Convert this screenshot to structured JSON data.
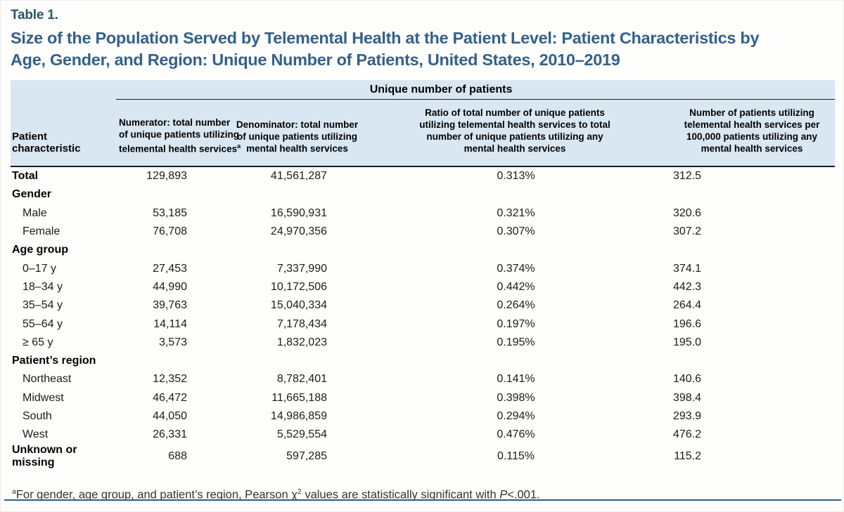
{
  "header": {
    "table_label": "Table 1.",
    "title": "Size of the Population Served by Telemental Health at the Patient Level: Patient Characteristics by\nAge, Gender, and Region: Unique Number of Patients, United States, 2010–2019"
  },
  "table": {
    "spanner": "Unique number of patients",
    "columns": [
      {
        "text": "Patient\ncharacteristic"
      },
      {
        "text": "Numerator: total number\nof unique patients utilizing\ntelemental health services",
        "sup": "a"
      },
      {
        "text": "Denominator: total number\nof unique patients utilizing\nmental health services"
      },
      {
        "text": "Ratio of total number of unique patients\nutilizing telemental health services to total\nnumber of unique patients utilizing any\nmental health services"
      },
      {
        "text": "Number of patients utilizing\ntelemental health services per\n100,000 patients utilizing any\nmental health services"
      }
    ],
    "rows": [
      {
        "label": "Total",
        "style": "bold",
        "values": [
          "129,893",
          "41,561,287",
          "0.313%",
          "312.5"
        ]
      },
      {
        "label": "Gender",
        "style": "section",
        "values": [
          "",
          "",
          "",
          ""
        ]
      },
      {
        "label": "Male",
        "style": "indent",
        "values": [
          "53,185",
          "16,590,931",
          "0.321%",
          "320.6"
        ]
      },
      {
        "label": "Female",
        "style": "indent",
        "values": [
          "76,708",
          "24,970,356",
          "0.307%",
          "307.2"
        ]
      },
      {
        "label": "Age group",
        "style": "section",
        "values": [
          "",
          "",
          "",
          ""
        ]
      },
      {
        "label": "0–17 y",
        "style": "indent",
        "values": [
          "27,453",
          "7,337,990",
          "0.374%",
          "374.1"
        ]
      },
      {
        "label": "18–34 y",
        "style": "indent",
        "values": [
          "44,990",
          "10,172,506",
          "0.442%",
          "442.3"
        ]
      },
      {
        "label": "35–54 y",
        "style": "indent",
        "values": [
          "39,763",
          "15,040,334",
          "0.264%",
          "264.4"
        ]
      },
      {
        "label": "55–64 y",
        "style": "indent",
        "values": [
          "14,114",
          "7,178,434",
          "0.197%",
          "196.6"
        ]
      },
      {
        "label": "≥ 65 y",
        "style": "indent",
        "values": [
          "3,573",
          "1,832,023",
          "0.195%",
          "195.0"
        ]
      },
      {
        "label": "Patient’s region",
        "style": "section",
        "values": [
          "",
          "",
          "",
          ""
        ]
      },
      {
        "label": "Northeast",
        "style": "indent",
        "values": [
          "12,352",
          "8,782,401",
          "0.141%",
          "140.6"
        ]
      },
      {
        "label": "Midwest",
        "style": "indent",
        "values": [
          "46,472",
          "11,665,188",
          "0.398%",
          "398.4"
        ]
      },
      {
        "label": "South",
        "style": "indent",
        "values": [
          "44,050",
          "14,986,859",
          "0.294%",
          "293.9"
        ]
      },
      {
        "label": "West",
        "style": "indent",
        "values": [
          "26,331",
          "5,529,554",
          "0.476%",
          "476.2"
        ]
      },
      {
        "label": "Unknown or missing",
        "style": "bold",
        "values": [
          "688",
          "597,285",
          "0.115%",
          "115.2"
        ]
      }
    ]
  },
  "footnote": {
    "sup": "a",
    "text1": "For gender, age group, and patient’s region, Pearson χ",
    "chi_sup": "2",
    "text2": " values are statistically significant with ",
    "p_label": "P",
    "text3": "<.001."
  },
  "colors": {
    "header_bg": "#d9e7f2",
    "title_blue": "#33618a",
    "label_blue": "#2d5468",
    "rule_blue": "#2f5c88"
  }
}
